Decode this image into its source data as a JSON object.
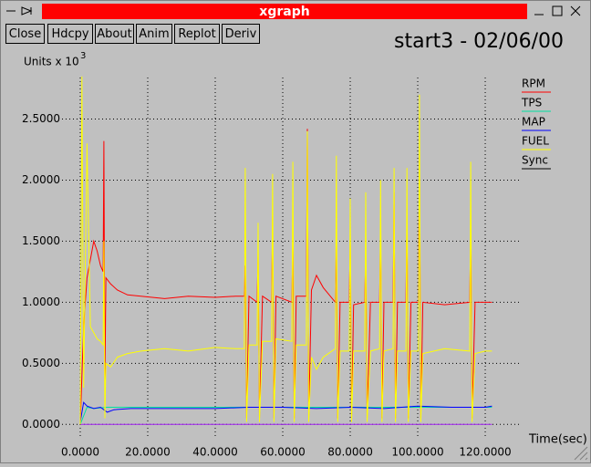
{
  "window": {
    "title": "xgraph",
    "buttons": [
      "Close",
      "Hdcpy",
      "About",
      "Anim",
      "Replot",
      "Deriv"
    ]
  },
  "chart_data": {
    "type": "line",
    "title": "start3 - 02/06/00",
    "y_label": "Units x 10",
    "y_label_exponent": "3",
    "x_label": "Time(sec)",
    "xlim": [
      -5.4,
      130.8
    ],
    "ylim": [
      -0.11,
      2.84
    ],
    "xticks": [
      {
        "value": 0,
        "label": "0.0000"
      },
      {
        "value": 20,
        "label": "20.0000"
      },
      {
        "value": 40,
        "label": "40.0000"
      },
      {
        "value": 60,
        "label": "60.0000"
      },
      {
        "value": 80,
        "label": "80.0000"
      },
      {
        "value": 100,
        "label": "100.0000"
      },
      {
        "value": 120,
        "label": "120.0000"
      }
    ],
    "yticks": [
      {
        "value": 0,
        "label": "0.0000"
      },
      {
        "value": 0.5,
        "label": "0.5000"
      },
      {
        "value": 1,
        "label": "1.0000"
      },
      {
        "value": 1.5,
        "label": "1.5000"
      },
      {
        "value": 2,
        "label": "2.0000"
      },
      {
        "value": 2.5,
        "label": "2.5000"
      }
    ],
    "grid": true,
    "legend": "right",
    "series": [
      {
        "name": "RPM",
        "color": "#ff0000",
        "x": [
          0,
          0.5,
          1,
          2,
          3,
          4,
          5,
          6,
          6.8,
          7,
          7.3,
          7.6,
          9,
          11,
          14,
          18,
          25,
          32,
          40,
          46,
          48.6,
          48.9,
          49.3,
          50,
          52.4,
          52.7,
          53.1,
          54,
          56.7,
          57,
          57.4,
          58,
          62.7,
          63,
          63.4,
          64,
          67,
          67.3,
          67.7,
          68.5,
          70,
          72,
          75.6,
          75.9,
          76.3,
          77,
          79.7,
          80,
          80.4,
          81,
          84.3,
          84.6,
          85,
          86,
          88.7,
          89,
          89.4,
          90,
          92.7,
          93,
          93.4,
          94,
          96.5,
          96.8,
          97.2,
          98,
          100.2,
          100.5,
          100.9,
          101.5,
          108,
          115.4,
          115.7,
          116.1,
          117,
          120,
          122
        ],
        "values": [
          0,
          0.4,
          0.8,
          1.2,
          1.35,
          1.5,
          1.42,
          1.3,
          1.25,
          2.32,
          0.3,
          1.2,
          1.15,
          1.1,
          1.06,
          1.05,
          1.03,
          1.05,
          1.04,
          1.05,
          1.05,
          1.3,
          0.05,
          1.05,
          1.0,
          1.4,
          0.05,
          1.05,
          1.0,
          1.7,
          0.05,
          1.05,
          1.0,
          1.5,
          0.05,
          1.05,
          1.05,
          2.42,
          0.05,
          1.1,
          1.22,
          1.12,
          1.0,
          1.5,
          0.05,
          1.0,
          1.0,
          1.5,
          0.05,
          0.98,
          1.0,
          1.4,
          0.05,
          1.0,
          1.0,
          1.6,
          0.05,
          1.0,
          1.0,
          1.9,
          0.05,
          1.0,
          1.0,
          1.7,
          0.05,
          1.0,
          1.0,
          2.2,
          0.05,
          1.0,
          0.98,
          1.0,
          1.6,
          0.05,
          1.0,
          1.0,
          1.0
        ]
      },
      {
        "name": "TPS",
        "color": "#00e0a0",
        "x": [
          0,
          2,
          4,
          8,
          20,
          60,
          100,
          122
        ],
        "values": [
          0,
          0.14,
          0.13,
          0.14,
          0.14,
          0.14,
          0.14,
          0.14
        ]
      },
      {
        "name": "MAP",
        "color": "#0000ff",
        "x": [
          0,
          1,
          2,
          4,
          6,
          8,
          10,
          15,
          20,
          30,
          40,
          50,
          60,
          70,
          80,
          90,
          100,
          110,
          120,
          122
        ],
        "values": [
          0.02,
          0.18,
          0.15,
          0.13,
          0.14,
          0.1,
          0.12,
          0.13,
          0.13,
          0.13,
          0.13,
          0.14,
          0.14,
          0.13,
          0.14,
          0.13,
          0.15,
          0.14,
          0.14,
          0.15
        ]
      },
      {
        "name": "FUEL",
        "color": "#ffff00",
        "x": [
          0,
          0.5,
          1,
          2,
          3,
          4,
          5,
          6,
          6.8,
          7,
          7.3,
          7.6,
          9,
          11,
          14,
          18,
          25,
          32,
          40,
          46,
          48.6,
          48.9,
          49.3,
          50,
          52.4,
          52.7,
          53.1,
          54,
          56.7,
          57,
          57.4,
          58,
          62.7,
          63,
          63.4,
          64,
          67,
          67.3,
          67.7,
          68.5,
          70,
          72,
          75.6,
          75.9,
          76.3,
          77,
          79.7,
          80,
          80.4,
          81,
          84.3,
          84.6,
          85,
          86,
          88.7,
          89,
          89.4,
          90,
          92.7,
          93,
          93.4,
          94,
          96.5,
          96.8,
          97.2,
          98,
          100.2,
          100.5,
          100.9,
          101.5,
          108,
          115.4,
          115.7,
          116.1,
          117,
          120,
          122
        ],
        "values": [
          0,
          2.85,
          0.3,
          2.3,
          0.8,
          0.75,
          0.7,
          0.68,
          0.65,
          1.5,
          0.05,
          0.5,
          0.47,
          0.55,
          0.58,
          0.6,
          0.62,
          0.6,
          0.63,
          0.62,
          0.62,
          2.1,
          0.02,
          0.65,
          0.65,
          1.65,
          0.02,
          0.68,
          0.68,
          2.05,
          0.02,
          0.7,
          0.68,
          2.15,
          0.02,
          0.65,
          0.65,
          2.4,
          0.02,
          0.55,
          0.45,
          0.55,
          0.62,
          2.2,
          0.02,
          0.6,
          0.6,
          1.85,
          0.02,
          0.6,
          0.6,
          1.9,
          0.02,
          0.6,
          0.62,
          2.0,
          0.02,
          0.6,
          0.62,
          2.1,
          0.02,
          0.6,
          0.6,
          2.1,
          0.02,
          0.6,
          0.6,
          2.7,
          0.02,
          0.58,
          0.62,
          0.6,
          2.15,
          0.02,
          0.58,
          0.6,
          0.6
        ]
      },
      {
        "name": "Sync",
        "color": "#a020f0",
        "legend_color": "#000000",
        "x": [
          0,
          122
        ],
        "values": [
          0,
          0
        ]
      }
    ]
  }
}
